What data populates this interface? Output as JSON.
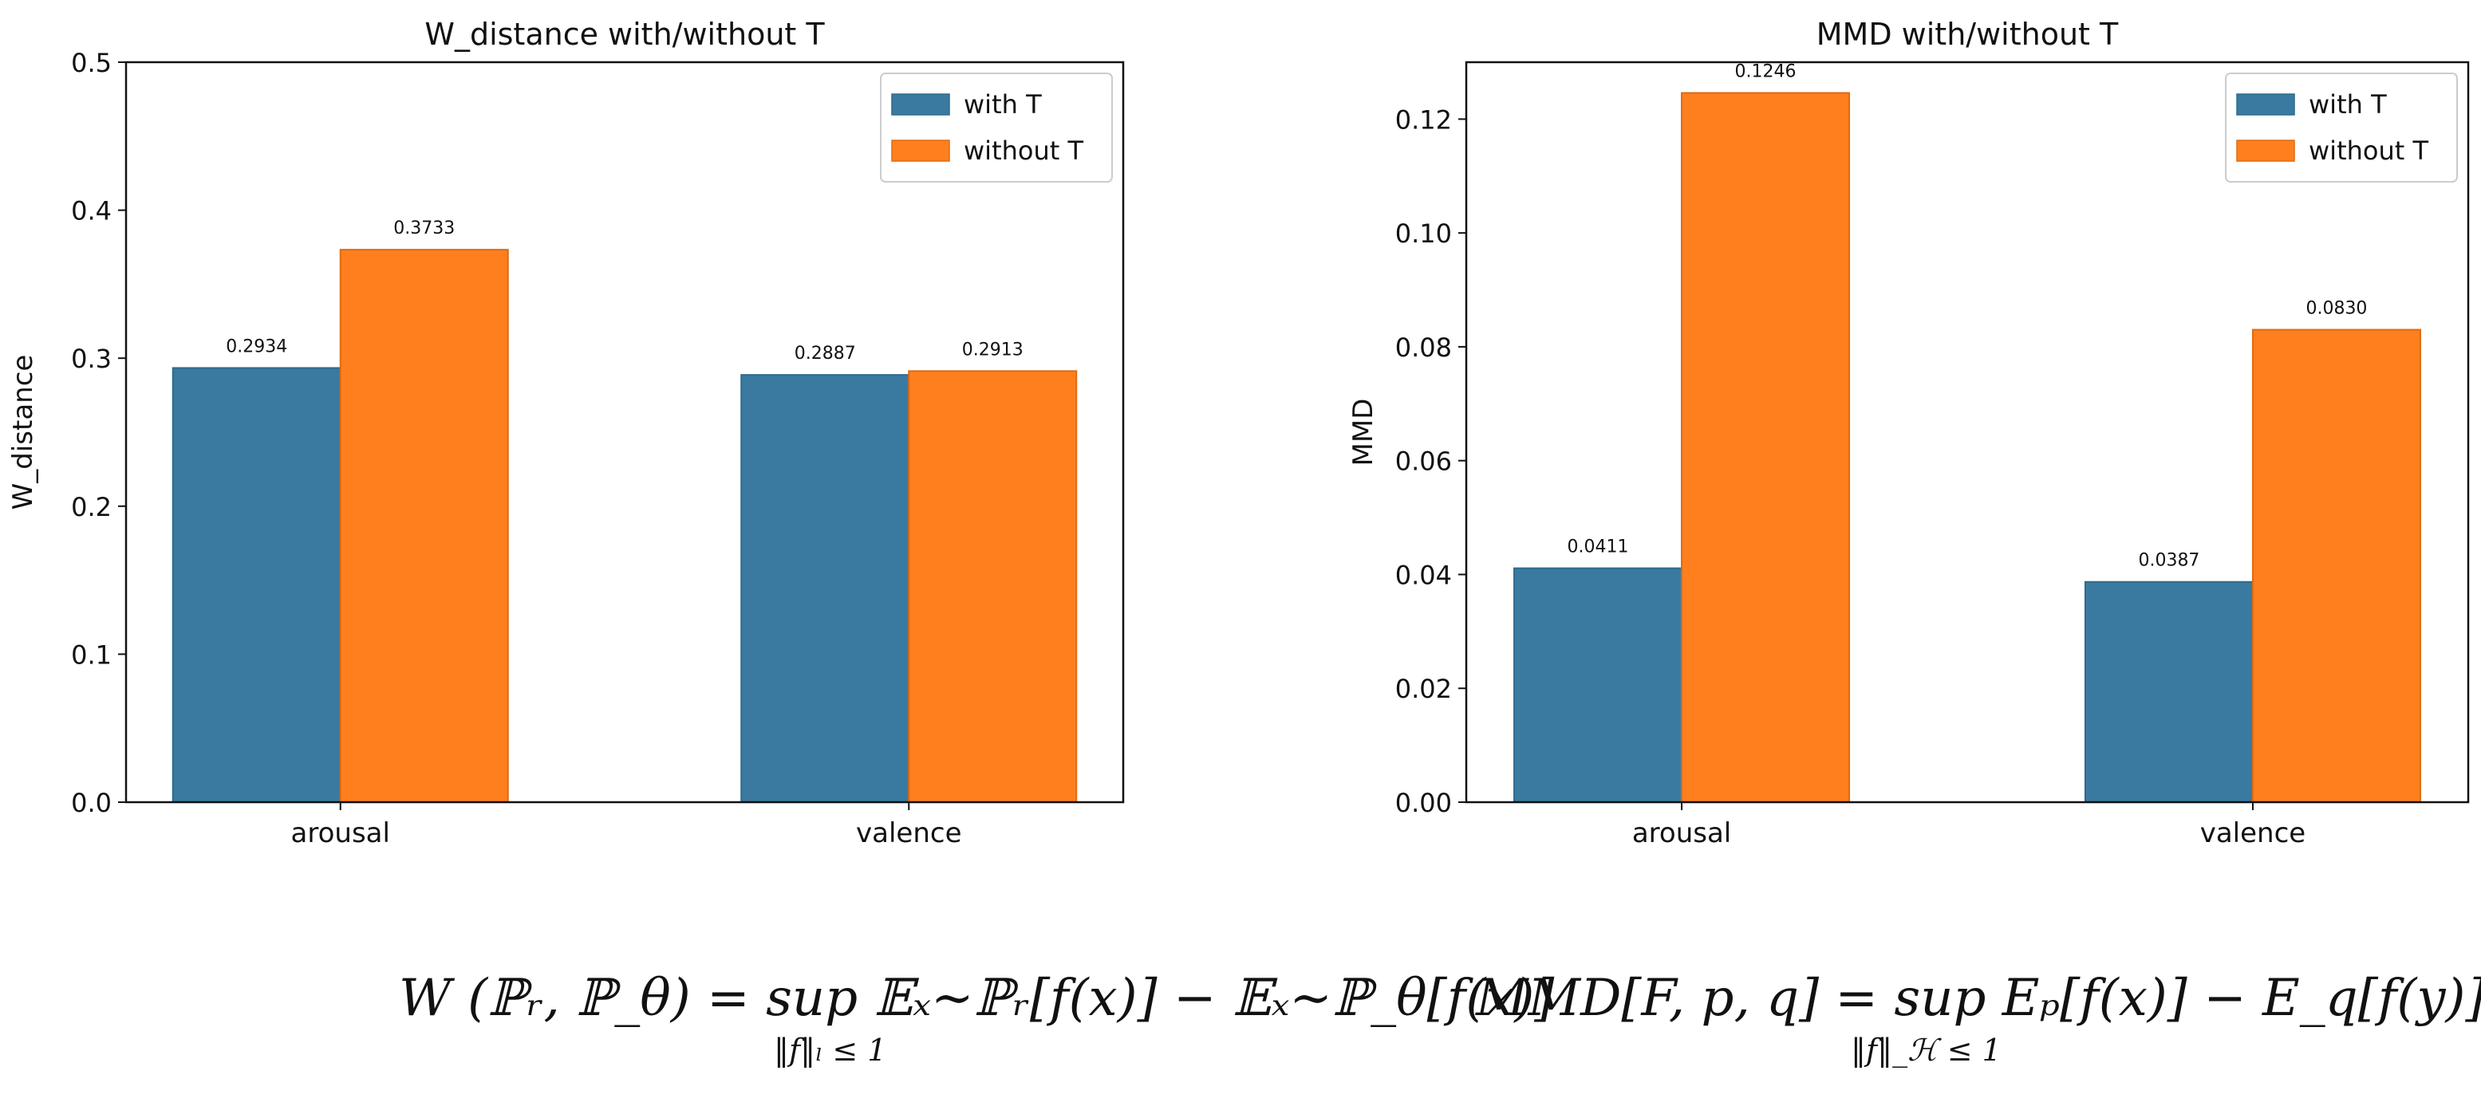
{
  "chart_data": [
    {
      "type": "bar",
      "title": "W_distance with/without T",
      "xlabel": "",
      "ylabel": "W_distance",
      "categories": [
        "arousal",
        "valence"
      ],
      "series": [
        {
          "name": "with T",
          "values": [
            0.2934,
            0.2887
          ],
          "labels": [
            "0.2934",
            "0.2887"
          ],
          "color": "#3a7aa0"
        },
        {
          "name": "without T",
          "values": [
            0.3733,
            0.2913
          ],
          "labels": [
            "0.3733",
            "0.2913"
          ],
          "color": "#ff7f1e"
        }
      ],
      "ylim": [
        0,
        0.5
      ],
      "yticks": [
        0.0,
        0.1,
        0.2,
        0.3,
        0.4,
        0.5
      ],
      "ytick_labels": [
        "0.0",
        "0.1",
        "0.2",
        "0.3",
        "0.4",
        "0.5"
      ],
      "legend": "top-right",
      "grid": false
    },
    {
      "type": "bar",
      "title": "MMD with/without T",
      "xlabel": "",
      "ylabel": "MMD",
      "categories": [
        "arousal",
        "valence"
      ],
      "series": [
        {
          "name": "with T",
          "values": [
            0.0411,
            0.0387
          ],
          "labels": [
            "0.0411",
            "0.0387"
          ],
          "color": "#3a7aa0"
        },
        {
          "name": "without T",
          "values": [
            0.1246,
            0.083
          ],
          "labels": [
            "0.1246",
            "0.0830"
          ],
          "color": "#ff7f1e"
        }
      ],
      "ylim": [
        0,
        0.13
      ],
      "yticks": [
        0.0,
        0.02,
        0.04,
        0.06,
        0.08,
        0.1,
        0.12
      ],
      "ytick_labels": [
        "0.00",
        "0.02",
        "0.04",
        "0.06",
        "0.08",
        "0.10",
        "0.12"
      ],
      "legend": "top-right",
      "grid": false
    }
  ],
  "formulas": {
    "w_main": "W (ℙᵣ, ℙ_θ) = sup 𝔼ₓ∼ℙᵣ[f(x)] − 𝔼ₓ∼ℙ_θ[f(x)]",
    "w_sub": "‖f‖ₗ ≤ 1",
    "mmd_main": "MMD[F, p, q] = sup Eₚ[f(x)] − E_q[f(y)]",
    "mmd_sub": "‖f‖_ℋ ≤ 1"
  }
}
